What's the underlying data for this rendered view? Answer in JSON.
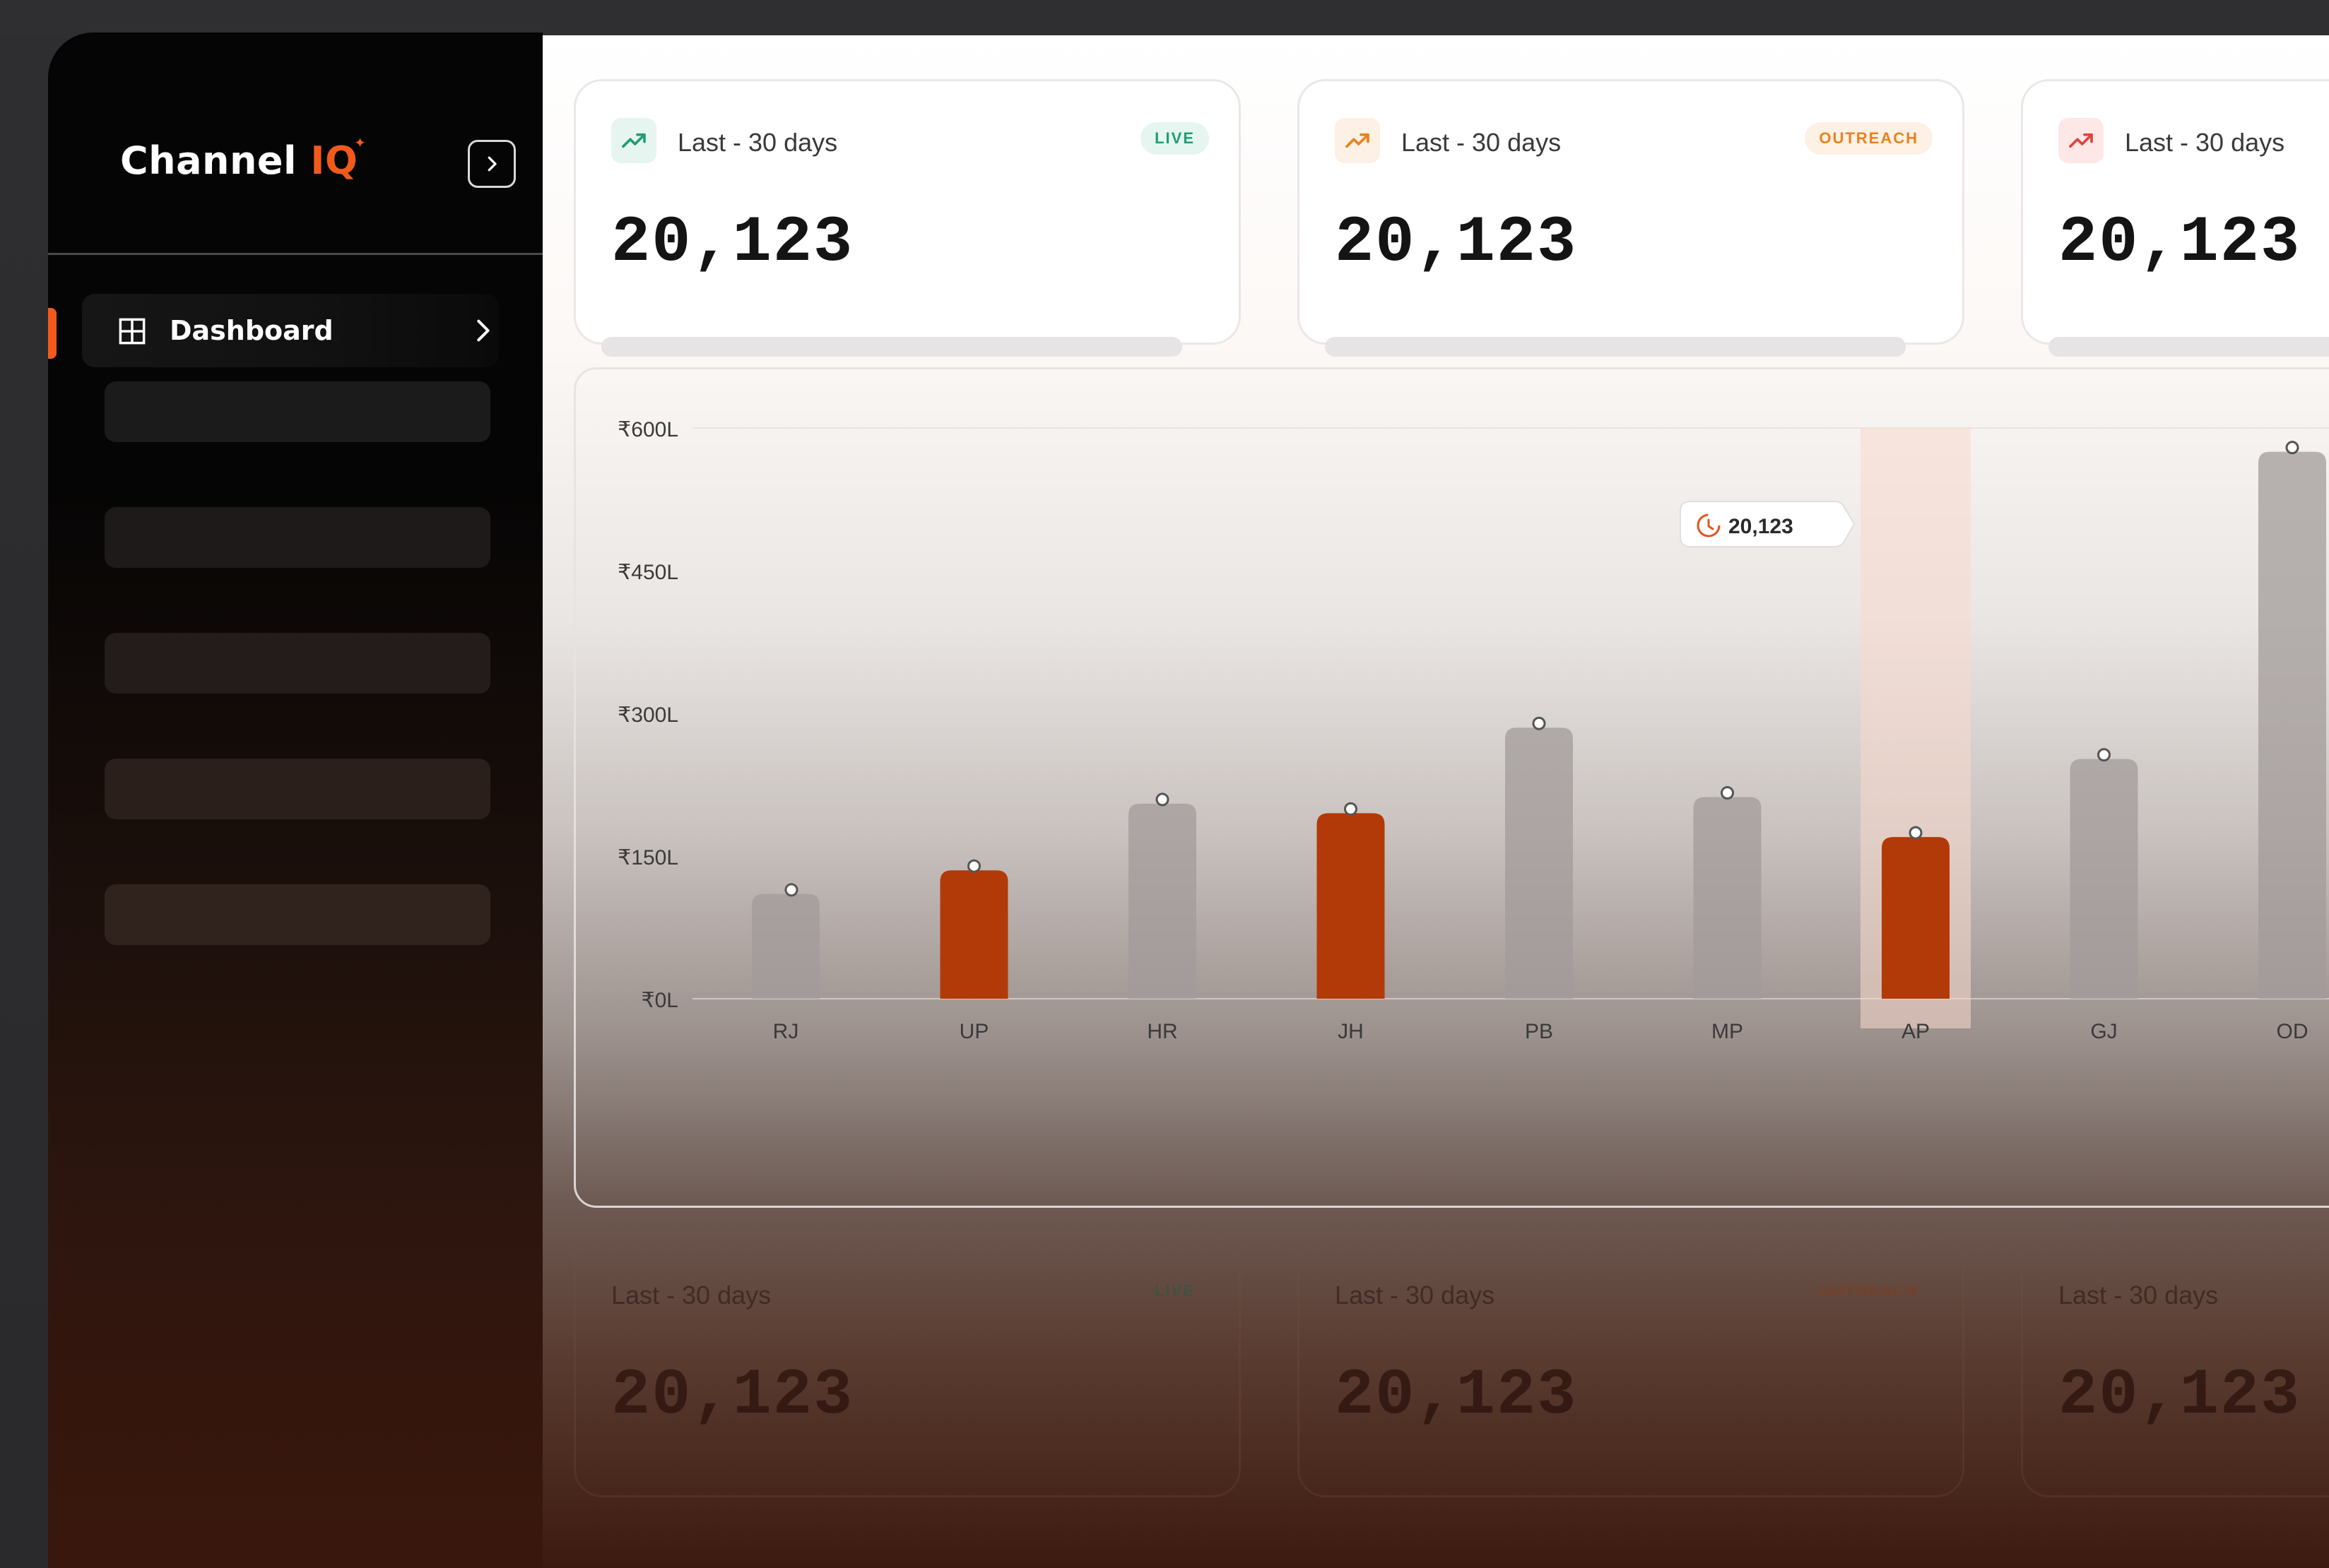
{
  "brand": {
    "name": "Channel",
    "suffix": "IQ",
    "mark": "✦"
  },
  "sidebar": {
    "active_item": {
      "label": "Dashboard",
      "icon": "grid-icon"
    },
    "placeholders": 5
  },
  "cards": [
    {
      "title": "Last - 30 days",
      "value": "20,123",
      "badge": "LIVE",
      "icon": "trend-up-icon",
      "accent": "#1e9e72",
      "icon_bg": "#e6f5ef",
      "badge_bg": "#e6f5ef",
      "progress": 0
    },
    {
      "title": "Last - 30 days",
      "value": "20,123",
      "badge": "OUTREACH",
      "icon": "trend-up-icon",
      "accent": "#e8821f",
      "icon_bg": "#fdf0e4",
      "badge_bg": "#fdf0e4",
      "progress": 0
    },
    {
      "title": "Last - 30 days",
      "value": "20,123",
      "badge": "",
      "icon": "trend-up-icon",
      "accent": "#e0443c",
      "icon_bg": "#fde8e7",
      "badge_bg": "#fde8e7",
      "progress": 0
    }
  ],
  "lower_cards": [
    {
      "title": "Last - 30 days",
      "value": "20,123",
      "badge": "LIVE",
      "accent": "#1e5e48"
    },
    {
      "title": "Last - 30 days",
      "value": "20,123",
      "badge": "OUTREACH",
      "accent": "#8a3a14"
    },
    {
      "title": "Last - 30 days",
      "value": "20,123",
      "badge": "",
      "accent": "#3a1a10"
    }
  ],
  "chart_data": {
    "type": "bar",
    "categories": [
      "RJ",
      "UP",
      "HR",
      "JH",
      "PB",
      "MP",
      "AP",
      "GJ",
      "OD"
    ],
    "values": [
      110,
      135,
      205,
      195,
      285,
      212,
      170,
      252,
      575
    ],
    "highlighted": [
      "UP",
      "JH",
      "AP"
    ],
    "hovered": "AP",
    "yticks": [
      "₹600L",
      "₹450L",
      "₹300L",
      "₹150L",
      "₹0L"
    ],
    "ylim": [
      0,
      600
    ],
    "tooltip": {
      "value": "20,123",
      "icon": "timer-icon"
    },
    "colors": {
      "highlight": "#b23a08",
      "normal": "#a29b99",
      "hover_band": "#f7d9cc"
    }
  }
}
